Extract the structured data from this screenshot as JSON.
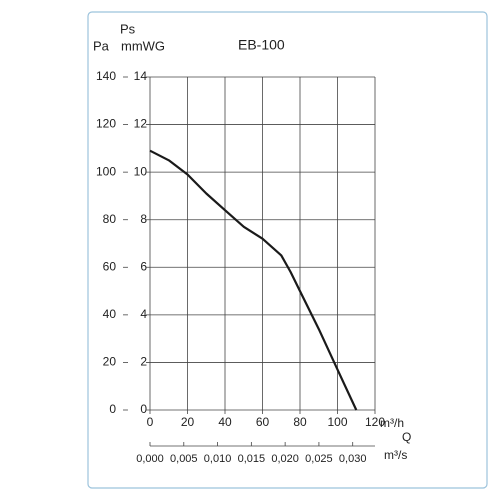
{
  "chart_data": {
    "type": "line",
    "title": "EB-100",
    "y_label_top": "Ps",
    "y2_label": "Pa",
    "y_label": "mmWG",
    "x_unit": "m³/h",
    "x_label": "Q",
    "x2_unit": "m³/s",
    "x": [
      0,
      10,
      20,
      30,
      40,
      50,
      60,
      70,
      75,
      80,
      90,
      100,
      110
    ],
    "values": [
      10.9,
      10.5,
      9.9,
      9.1,
      8.4,
      7.7,
      7.2,
      6.5,
      5.8,
      5.0,
      3.4,
      1.7,
      0
    ],
    "color": "#1a1a1a",
    "xlim": [
      0,
      120
    ],
    "xticks": [
      0,
      20,
      40,
      60,
      80,
      100,
      120
    ],
    "x2lim": [
      0,
      0.0333
    ],
    "x2ticks": [
      {
        "value": 0,
        "label": "0,000"
      },
      {
        "value": 0.005,
        "label": "0,005"
      },
      {
        "value": 0.01,
        "label": "0,010"
      },
      {
        "value": 0.015,
        "label": "0,015"
      },
      {
        "value": 0.02,
        "label": "0,020"
      },
      {
        "value": 0.025,
        "label": "0,025"
      },
      {
        "value": 0.03,
        "label": "0,030"
      }
    ],
    "ylim": [
      0,
      14
    ],
    "yticks": [
      0,
      2,
      4,
      6,
      8,
      10,
      12,
      14
    ],
    "y2lim": [
      0,
      140
    ],
    "y2ticks": [
      0,
      20,
      40,
      60,
      80,
      100,
      120,
      140
    ],
    "grid": true
  }
}
